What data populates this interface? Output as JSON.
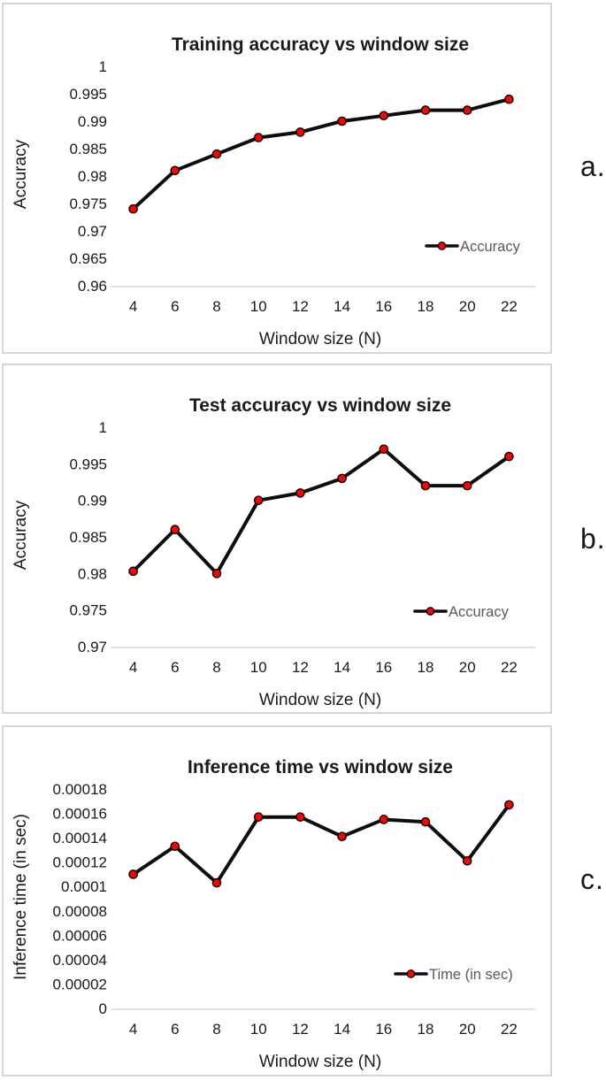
{
  "page": {
    "background": "#ffffff"
  },
  "side_labels": [
    "a.",
    "b.",
    "c."
  ],
  "colors": {
    "text": "#1a1a1a",
    "line": "#0d0d0d",
    "marker_fill": "#ff0000",
    "marker_outline": "#000000",
    "legend_text": "#595959",
    "axis_line": "#d9d9d9",
    "panel_border": "#d6d6d6"
  },
  "chart_data": [
    {
      "id": "a",
      "type": "line",
      "title": "Training accuracy vs window size",
      "xlabel": "Window size (N)",
      "ylabel": "Accuracy",
      "grid": false,
      "legend": {
        "label": "Accuracy",
        "position": "lower-right"
      },
      "x": [
        4,
        6,
        8,
        10,
        12,
        14,
        16,
        18,
        20,
        22
      ],
      "xtick_labels": [
        "4",
        "6",
        "8",
        "10",
        "12",
        "14",
        "16",
        "18",
        "20",
        "22"
      ],
      "series": [
        {
          "name": "Accuracy",
          "values": [
            0.974,
            0.981,
            0.984,
            0.987,
            0.988,
            0.99,
            0.991,
            0.992,
            0.992,
            0.994
          ]
        }
      ],
      "ylim": [
        0.96,
        1
      ],
      "yticks": [
        1,
        0.995,
        0.99,
        0.985,
        0.98,
        0.975,
        0.97,
        0.965,
        0.96
      ],
      "ytick_labels": [
        "1",
        "0.995",
        "0.99",
        "0.985",
        "0.98",
        "0.975",
        "0.97",
        "0.965",
        "0.96"
      ]
    },
    {
      "id": "b",
      "type": "line",
      "title": "Test accuracy vs window size",
      "xlabel": "Window size (N)",
      "ylabel": "Accuracy",
      "grid": false,
      "legend": {
        "label": "Accuracy",
        "position": "lower-right"
      },
      "x": [
        4,
        6,
        8,
        10,
        12,
        14,
        16,
        18,
        20,
        22
      ],
      "xtick_labels": [
        "4",
        "6",
        "8",
        "10",
        "12",
        "14",
        "16",
        "18",
        "20",
        "22"
      ],
      "series": [
        {
          "name": "Accuracy",
          "values": [
            0.9803,
            0.986,
            0.98,
            0.99,
            0.991,
            0.993,
            0.997,
            0.992,
            0.992,
            0.996
          ]
        }
      ],
      "ylim": [
        0.97,
        1
      ],
      "yticks": [
        1,
        0.995,
        0.99,
        0.985,
        0.98,
        0.975,
        0.97
      ],
      "ytick_labels": [
        "1",
        "0.995",
        "0.99",
        "0.985",
        "0.98",
        "0.975",
        "0.97"
      ]
    },
    {
      "id": "c",
      "type": "line",
      "title": "Inference time vs window size",
      "xlabel": "Window size (N)",
      "ylabel": "Inference time (in sec)",
      "grid": false,
      "legend": {
        "label": "Time (in sec)",
        "position": "lower-right"
      },
      "x": [
        4,
        6,
        8,
        10,
        12,
        14,
        16,
        18,
        20,
        22
      ],
      "xtick_labels": [
        "4",
        "6",
        "8",
        "10",
        "12",
        "14",
        "16",
        "18",
        "20",
        "22"
      ],
      "series": [
        {
          "name": "Time (in sec)",
          "values": [
            0.00011,
            0.000133,
            0.000103,
            0.000157,
            0.000157,
            0.000141,
            0.000155,
            0.000153,
            0.000121,
            0.000167
          ]
        }
      ],
      "ylim": [
        0,
        0.00018
      ],
      "yticks": [
        0.00018,
        0.00016,
        0.00014,
        0.00012,
        0.0001,
        8e-05,
        6e-05,
        4e-05,
        2e-05,
        0
      ],
      "ytick_labels": [
        "0.00018",
        "0.00016",
        "0.00014",
        "0.00012",
        "0.0001",
        "0.00008",
        "0.00006",
        "0.00004",
        "0.00002",
        "0"
      ]
    }
  ]
}
